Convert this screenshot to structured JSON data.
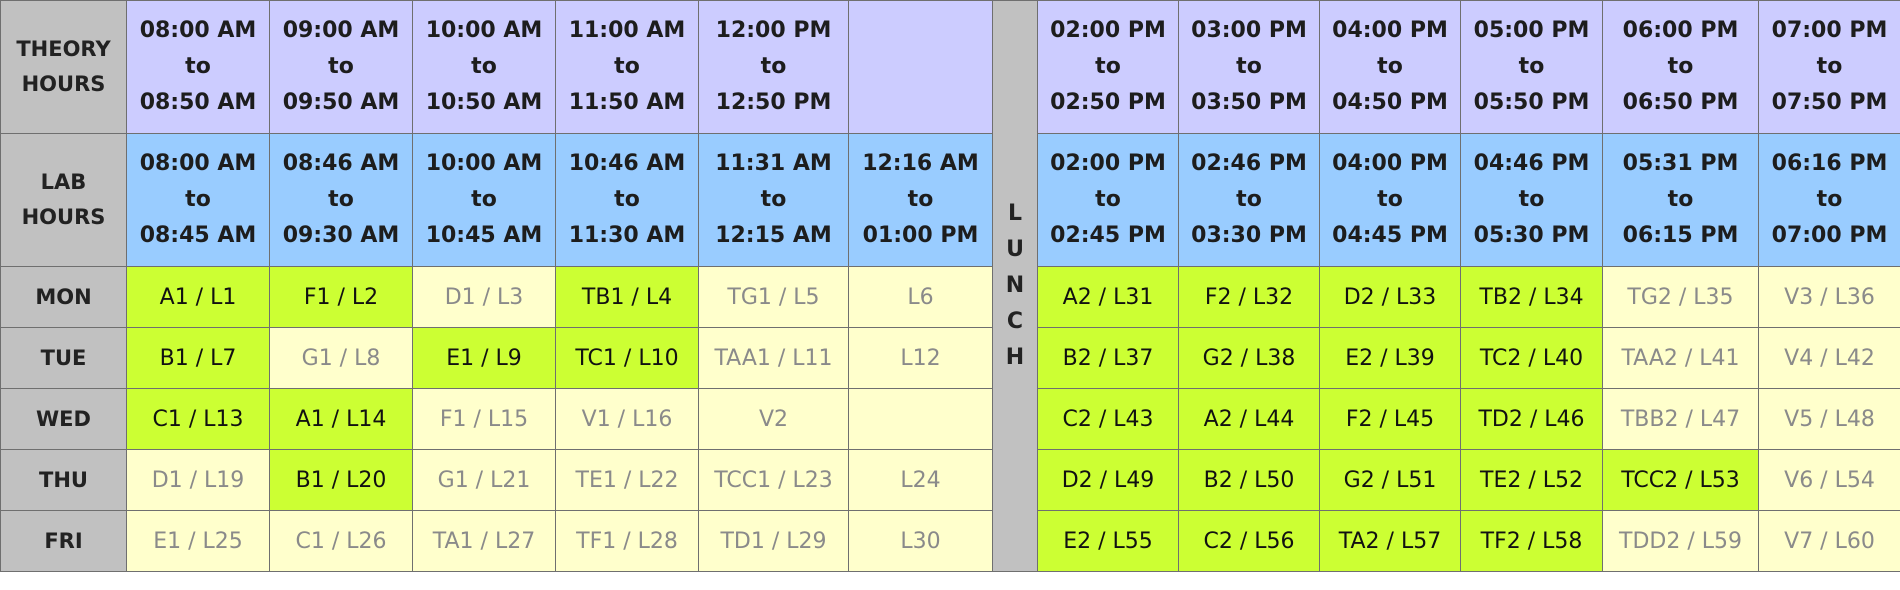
{
  "theory_label": [
    "THEORY",
    "HOURS"
  ],
  "lab_label": [
    "LAB",
    "HOURS"
  ],
  "lunch": [
    "L",
    "U",
    "N",
    "C",
    "H"
  ],
  "theory_before": [
    [
      "08:00 AM",
      "to",
      "08:50 AM"
    ],
    [
      "09:00 AM",
      "to",
      "09:50 AM"
    ],
    [
      "10:00 AM",
      "to",
      "10:50 AM"
    ],
    [
      "11:00 AM",
      "to",
      "11:50 AM"
    ],
    [
      "12:00 PM",
      "to",
      "12:50 PM"
    ],
    [
      "",
      "",
      ""
    ]
  ],
  "theory_after": [
    [
      "02:00 PM",
      "to",
      "02:50 PM"
    ],
    [
      "03:00 PM",
      "to",
      "03:50 PM"
    ],
    [
      "04:00 PM",
      "to",
      "04:50 PM"
    ],
    [
      "05:00 PM",
      "to",
      "05:50 PM"
    ],
    [
      "06:00 PM",
      "to",
      "06:50 PM"
    ],
    [
      "07:00 PM",
      "to",
      "07:50 PM"
    ]
  ],
  "lab_before": [
    [
      "08:00 AM",
      "to",
      "08:45 AM"
    ],
    [
      "08:46 AM",
      "to",
      "09:30 AM"
    ],
    [
      "10:00 AM",
      "to",
      "10:45 AM"
    ],
    [
      "10:46 AM",
      "to",
      "11:30 AM"
    ],
    [
      "11:31 AM",
      "to",
      "12:15 AM"
    ],
    [
      "12:16 AM",
      "to",
      "01:00 PM"
    ]
  ],
  "lab_after": [
    [
      "02:00 PM",
      "to",
      "02:45 PM"
    ],
    [
      "02:46 PM",
      "to",
      "03:30 PM"
    ],
    [
      "04:00 PM",
      "to",
      "04:45 PM"
    ],
    [
      "04:46 PM",
      "to",
      "05:30 PM"
    ],
    [
      "05:31 PM",
      "to",
      "06:15 PM"
    ],
    [
      "06:16 PM",
      "to",
      "07:00 PM"
    ]
  ],
  "days": [
    {
      "name": "MON",
      "before": [
        {
          "text": "A1 / L1",
          "selected": true
        },
        {
          "text": "F1 / L2",
          "selected": true
        },
        {
          "text": "D1 / L3",
          "selected": false
        },
        {
          "text": "TB1 / L4",
          "selected": true
        },
        {
          "text": "TG1 / L5",
          "selected": false
        },
        {
          "text": "L6",
          "selected": false
        }
      ],
      "after": [
        {
          "text": "A2 / L31",
          "selected": true
        },
        {
          "text": "F2 / L32",
          "selected": true
        },
        {
          "text": "D2 / L33",
          "selected": true
        },
        {
          "text": "TB2 / L34",
          "selected": true
        },
        {
          "text": "TG2 / L35",
          "selected": false
        },
        {
          "text": "V3 / L36",
          "selected": false
        }
      ]
    },
    {
      "name": "TUE",
      "before": [
        {
          "text": "B1 / L7",
          "selected": true
        },
        {
          "text": "G1 / L8",
          "selected": false
        },
        {
          "text": "E1 / L9",
          "selected": true
        },
        {
          "text": "TC1 / L10",
          "selected": true
        },
        {
          "text": "TAA1 / L11",
          "selected": false
        },
        {
          "text": "L12",
          "selected": false
        }
      ],
      "after": [
        {
          "text": "B2 / L37",
          "selected": true
        },
        {
          "text": "G2 / L38",
          "selected": true
        },
        {
          "text": "E2 / L39",
          "selected": true
        },
        {
          "text": "TC2 / L40",
          "selected": true
        },
        {
          "text": "TAA2 / L41",
          "selected": false
        },
        {
          "text": "V4 / L42",
          "selected": false
        }
      ]
    },
    {
      "name": "WED",
      "before": [
        {
          "text": "C1 / L13",
          "selected": true
        },
        {
          "text": "A1 / L14",
          "selected": true
        },
        {
          "text": "F1 / L15",
          "selected": false
        },
        {
          "text": "V1 / L16",
          "selected": false
        },
        {
          "text": "V2",
          "selected": false
        },
        {
          "text": "",
          "selected": false
        }
      ],
      "after": [
        {
          "text": "C2 / L43",
          "selected": true
        },
        {
          "text": "A2 / L44",
          "selected": true
        },
        {
          "text": "F2 / L45",
          "selected": true
        },
        {
          "text": "TD2 / L46",
          "selected": true
        },
        {
          "text": "TBB2 / L47",
          "selected": false
        },
        {
          "text": "V5 / L48",
          "selected": false
        }
      ]
    },
    {
      "name": "THU",
      "before": [
        {
          "text": "D1 / L19",
          "selected": false
        },
        {
          "text": "B1 / L20",
          "selected": true
        },
        {
          "text": "G1 / L21",
          "selected": false
        },
        {
          "text": "TE1 / L22",
          "selected": false
        },
        {
          "text": "TCC1 / L23",
          "selected": false
        },
        {
          "text": "L24",
          "selected": false
        }
      ],
      "after": [
        {
          "text": "D2 / L49",
          "selected": true
        },
        {
          "text": "B2 / L50",
          "selected": true
        },
        {
          "text": "G2 / L51",
          "selected": true
        },
        {
          "text": "TE2 / L52",
          "selected": true
        },
        {
          "text": "TCC2 / L53",
          "selected": true
        },
        {
          "text": "V6 / L54",
          "selected": false
        }
      ]
    },
    {
      "name": "FRI",
      "before": [
        {
          "text": "E1 / L25",
          "selected": false
        },
        {
          "text": "C1 / L26",
          "selected": false
        },
        {
          "text": "TA1 / L27",
          "selected": false
        },
        {
          "text": "TF1 / L28",
          "selected": false
        },
        {
          "text": "TD1 / L29",
          "selected": false
        },
        {
          "text": "L30",
          "selected": false
        }
      ],
      "after": [
        {
          "text": "E2 / L55",
          "selected": true
        },
        {
          "text": "C2 / L56",
          "selected": true
        },
        {
          "text": "TA2 / L57",
          "selected": true
        },
        {
          "text": "TF2 / L58",
          "selected": true
        },
        {
          "text": "TDD2 / L59",
          "selected": false
        },
        {
          "text": "V7 / L60",
          "selected": false
        }
      ]
    }
  ],
  "colors": {
    "header_gray": "#c1c1c1",
    "theory_bg": "#ccccff",
    "lab_bg": "#99ccff",
    "selected_bg": "#ccff33",
    "unselected_bg": "#ffffcc"
  }
}
